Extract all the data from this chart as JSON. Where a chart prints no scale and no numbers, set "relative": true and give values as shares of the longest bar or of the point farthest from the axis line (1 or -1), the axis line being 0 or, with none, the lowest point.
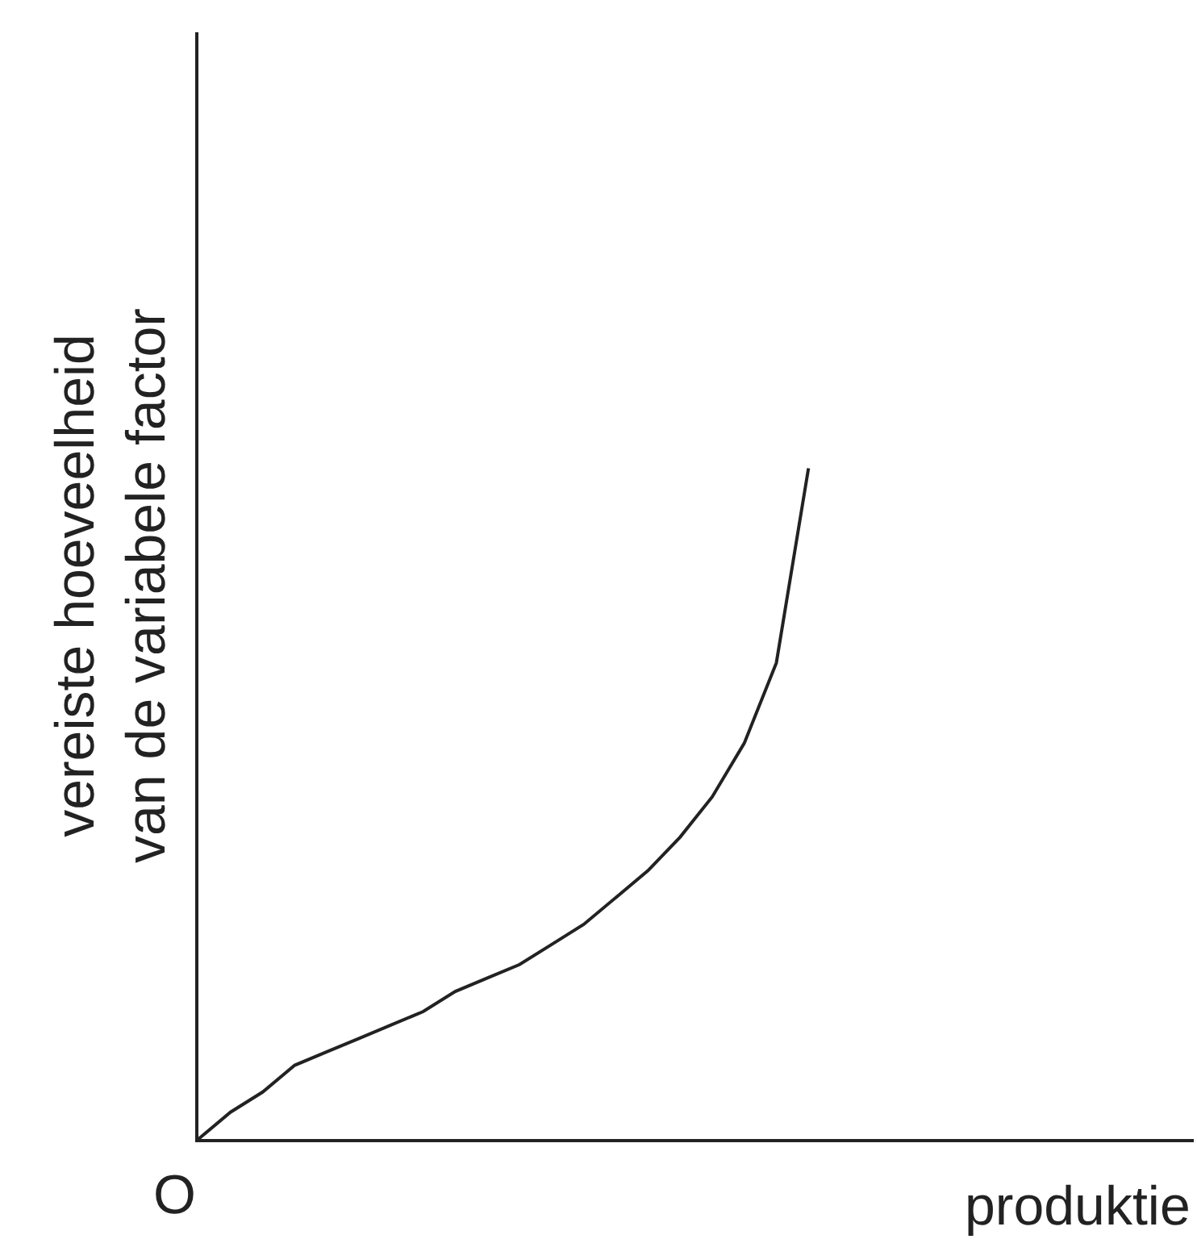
{
  "chart_data": {
    "type": "line",
    "relative": true,
    "ylabel": "vereiste hoeveelheid\nvan de variabele factor",
    "xlabel": "produktie",
    "annotations": [
      "O"
    ],
    "categories": [
      null,
      null,
      null,
      null,
      null,
      null,
      null,
      null,
      null,
      null,
      null,
      null,
      null,
      null,
      null,
      null,
      null,
      null,
      null,
      null,
      null,
      null,
      null,
      null,
      null,
      null,
      null,
      null,
      null,
      null,
      null,
      null
    ],
    "series": [
      {
        "color": "#222222",
        "values": [
          0,
          0.04,
          0.07,
          0.11,
          0.13,
          0.15,
          0.17,
          0.19,
          0.22,
          0.24,
          0.26,
          0.29,
          0.32,
          0.36,
          0.4,
          0.45,
          0.51,
          0.59,
          0.71,
          1,
          null,
          null,
          null,
          null,
          null,
          null,
          null,
          null,
          null,
          null,
          null,
          null
        ]
      }
    ],
    "marker": "none",
    "line_style": "solid"
  }
}
